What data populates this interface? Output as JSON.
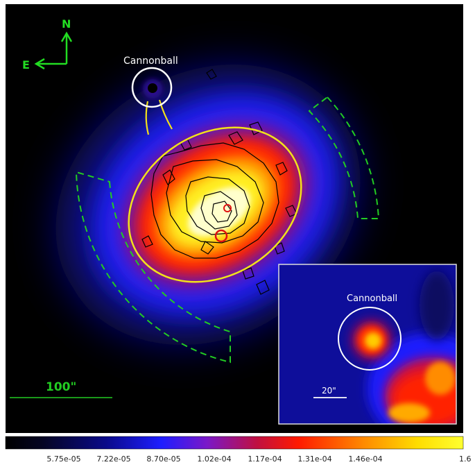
{
  "compass": {
    "north": "N",
    "east": "E",
    "color": "#22dd22"
  },
  "main_labels": {
    "cannonball": "Cannonball",
    "scale": "100\""
  },
  "inset": {
    "cannonball": "Cannonball",
    "scale": "20\""
  },
  "colorbar": {
    "ticks": [
      "5.75e-05",
      "7.22e-05",
      "8.70e-05",
      "1.02e-04",
      "1.17e-04",
      "1.31e-04",
      "1.46e-04",
      "1.6"
    ]
  },
  "colors": {
    "region_dash": "#22cc22",
    "ellipse": "#f2e21a",
    "cannonball_circle": "#ffffff",
    "point_source": "#e01010"
  }
}
